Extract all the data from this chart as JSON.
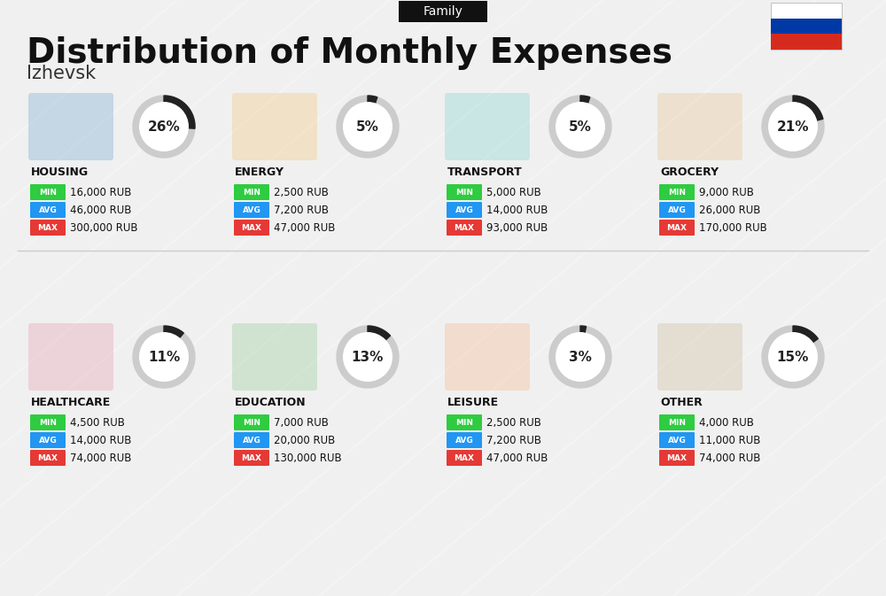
{
  "title": "Distribution of Monthly Expenses",
  "subtitle": "Family",
  "city": "Izhevsk",
  "bg_color": "#f0f0f0",
  "categories": [
    {
      "name": "HOUSING",
      "pct": 26,
      "min": "16,000 RUB",
      "avg": "46,000 RUB",
      "max": "300,000 RUB",
      "col": 0,
      "row": 0,
      "icon_color": "#1a6eb5"
    },
    {
      "name": "ENERGY",
      "pct": 5,
      "min": "2,500 RUB",
      "avg": "7,200 RUB",
      "max": "47,000 RUB",
      "col": 1,
      "row": 0,
      "icon_color": "#f5a623"
    },
    {
      "name": "TRANSPORT",
      "pct": 5,
      "min": "5,000 RUB",
      "avg": "14,000 RUB",
      "max": "93,000 RUB",
      "col": 2,
      "row": 0,
      "icon_color": "#2dc1b8"
    },
    {
      "name": "GROCERY",
      "pct": 21,
      "min": "9,000 RUB",
      "avg": "26,000 RUB",
      "max": "170,000 RUB",
      "col": 3,
      "row": 0,
      "icon_color": "#e8a44a"
    },
    {
      "name": "HEALTHCARE",
      "pct": 11,
      "min": "4,500 RUB",
      "avg": "14,000 RUB",
      "max": "74,000 RUB",
      "col": 0,
      "row": 1,
      "icon_color": "#e05b7f"
    },
    {
      "name": "EDUCATION",
      "pct": 13,
      "min": "7,000 RUB",
      "avg": "20,000 RUB",
      "max": "130,000 RUB",
      "col": 1,
      "row": 1,
      "icon_color": "#4caf50"
    },
    {
      "name": "LEISURE",
      "pct": 3,
      "min": "2,500 RUB",
      "avg": "7,200 RUB",
      "max": "47,000 RUB",
      "col": 2,
      "row": 1,
      "icon_color": "#ff8c42"
    },
    {
      "name": "OTHER",
      "pct": 15,
      "min": "4,000 RUB",
      "avg": "11,000 RUB",
      "max": "74,000 RUB",
      "col": 3,
      "row": 1,
      "icon_color": "#b5935a"
    }
  ],
  "min_color": "#2ecc40",
  "avg_color": "#2196f3",
  "max_color": "#e53935",
  "ring_color": "#333333",
  "ring_bg_color": "#cccccc",
  "flag_colors": [
    "#cc0000",
    "#0033cc"
  ],
  "russia_flag": true
}
